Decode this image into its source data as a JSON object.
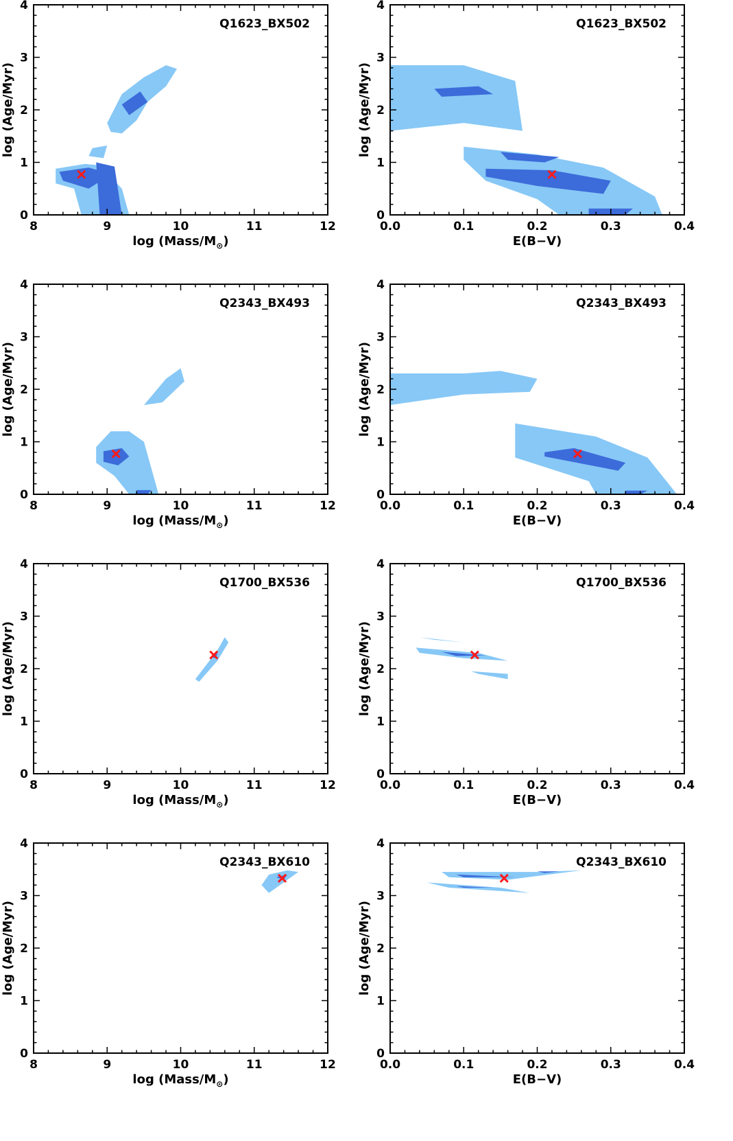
{
  "figure": {
    "colors": {
      "confidence_68": "#3c6bda",
      "confidence_95": "#87c8f6",
      "best_fit_marker": "#ff1a1a"
    }
  },
  "chart_data": [
    {
      "type": "contour",
      "object": "Q1623_BX502",
      "xlabel": "log (Mass/M",
      "xlabel_sub": "⊙",
      "xlabel_close": ")",
      "ylabel": "log (Age/Myr)",
      "xlim": [
        8,
        12
      ],
      "ylim": [
        0,
        4
      ],
      "xticks": [
        "8",
        "9",
        "10",
        "11",
        "12"
      ],
      "yticks": [
        "0",
        "1",
        "2",
        "3",
        "4"
      ],
      "best_fit": {
        "x": 8.65,
        "y": 0.77
      },
      "regions_95": [
        [
          [
            8.3,
            0.88
          ],
          [
            8.7,
            0.97
          ],
          [
            9.0,
            0.93
          ],
          [
            9.05,
            0.72
          ],
          [
            9.2,
            0.5
          ],
          [
            9.3,
            0.0
          ],
          [
            8.65,
            0.0
          ],
          [
            8.55,
            0.5
          ],
          [
            8.3,
            0.6
          ]
        ],
        [
          [
            9.0,
            1.75
          ],
          [
            9.2,
            2.3
          ],
          [
            9.5,
            2.62
          ],
          [
            9.8,
            2.85
          ],
          [
            9.95,
            2.78
          ],
          [
            9.8,
            2.45
          ],
          [
            9.55,
            2.15
          ],
          [
            9.4,
            1.8
          ],
          [
            9.2,
            1.55
          ],
          [
            9.05,
            1.58
          ]
        ],
        [
          [
            8.8,
            1.27
          ],
          [
            9.0,
            1.32
          ],
          [
            8.95,
            1.08
          ],
          [
            8.75,
            1.12
          ]
        ]
      ],
      "regions_68": [
        [
          [
            8.35,
            0.82
          ],
          [
            8.75,
            0.9
          ],
          [
            8.95,
            0.82
          ],
          [
            8.95,
            0.68
          ],
          [
            8.75,
            0.5
          ],
          [
            8.4,
            0.65
          ]
        ],
        [
          [
            9.2,
            2.1
          ],
          [
            9.45,
            2.35
          ],
          [
            9.55,
            2.15
          ],
          [
            9.3,
            1.9
          ]
        ],
        [
          [
            8.85,
            1.0
          ],
          [
            9.1,
            0.92
          ],
          [
            9.2,
            0.0
          ],
          [
            8.9,
            0.0
          ]
        ]
      ]
    },
    {
      "type": "contour",
      "object": "Q1623_BX502",
      "xlabel": "E(B−V)",
      "xlabel_sub": "",
      "xlabel_close": "",
      "ylabel": "log (Age/Myr)",
      "xlim": [
        0,
        0.4
      ],
      "ylim": [
        0,
        4
      ],
      "xticks": [
        "0.0",
        "0.1",
        "0.2",
        "0.3",
        "0.4"
      ],
      "yticks": [
        "0",
        "1",
        "2",
        "3",
        "4"
      ],
      "best_fit": {
        "x": 0.22,
        "y": 0.77
      },
      "regions_95": [
        [
          [
            0.0,
            2.85
          ],
          [
            0.1,
            2.85
          ],
          [
            0.17,
            2.55
          ],
          [
            0.18,
            1.6
          ],
          [
            0.1,
            1.75
          ],
          [
            0.0,
            1.6
          ]
        ],
        [
          [
            0.1,
            1.3
          ],
          [
            0.2,
            1.15
          ],
          [
            0.29,
            0.9
          ],
          [
            0.36,
            0.35
          ],
          [
            0.37,
            0.0
          ],
          [
            0.23,
            0.0
          ],
          [
            0.2,
            0.3
          ],
          [
            0.13,
            0.65
          ],
          [
            0.1,
            1.05
          ]
        ]
      ],
      "regions_68": [
        [
          [
            0.13,
            0.88
          ],
          [
            0.22,
            0.85
          ],
          [
            0.3,
            0.65
          ],
          [
            0.29,
            0.4
          ],
          [
            0.2,
            0.55
          ],
          [
            0.13,
            0.73
          ]
        ],
        [
          [
            0.15,
            1.2
          ],
          [
            0.23,
            1.1
          ],
          [
            0.21,
            1.0
          ],
          [
            0.16,
            1.05
          ]
        ],
        [
          [
            0.06,
            2.4
          ],
          [
            0.12,
            2.45
          ],
          [
            0.14,
            2.3
          ],
          [
            0.07,
            2.25
          ]
        ],
        [
          [
            0.27,
            0.12
          ],
          [
            0.33,
            0.12
          ],
          [
            0.32,
            0.0
          ],
          [
            0.27,
            0.0
          ]
        ]
      ]
    },
    {
      "type": "contour",
      "object": "Q2343_BX493",
      "xlabel": "log (Mass/M",
      "xlabel_sub": "⊙",
      "xlabel_close": ")",
      "ylabel": "log (Age/Myr)",
      "xlim": [
        8,
        12
      ],
      "ylim": [
        0,
        4
      ],
      "xticks": [
        "8",
        "9",
        "10",
        "11",
        "12"
      ],
      "yticks": [
        "0",
        "1",
        "2",
        "3",
        "4"
      ],
      "best_fit": {
        "x": 9.12,
        "y": 0.77
      },
      "regions_95": [
        [
          [
            8.85,
            0.9
          ],
          [
            9.05,
            1.2
          ],
          [
            9.3,
            1.2
          ],
          [
            9.5,
            1.0
          ],
          [
            9.6,
            0.5
          ],
          [
            9.7,
            0.0
          ],
          [
            9.3,
            0.0
          ],
          [
            9.1,
            0.35
          ],
          [
            8.85,
            0.6
          ]
        ],
        [
          [
            9.5,
            1.7
          ],
          [
            9.8,
            2.2
          ],
          [
            10.0,
            2.4
          ],
          [
            10.05,
            2.15
          ],
          [
            9.75,
            1.75
          ]
        ]
      ],
      "regions_68": [
        [
          [
            8.95,
            0.82
          ],
          [
            9.2,
            0.88
          ],
          [
            9.3,
            0.72
          ],
          [
            9.15,
            0.55
          ],
          [
            8.95,
            0.62
          ]
        ],
        [
          [
            9.4,
            0.08
          ],
          [
            9.6,
            0.08
          ],
          [
            9.55,
            0.0
          ],
          [
            9.4,
            0.0
          ]
        ]
      ]
    },
    {
      "type": "contour",
      "object": "Q2343_BX493",
      "xlabel": "E(B−V)",
      "xlabel_sub": "",
      "xlabel_close": "",
      "ylabel": "log (Age/Myr)",
      "xlim": [
        0,
        0.4
      ],
      "ylim": [
        0,
        4
      ],
      "xticks": [
        "0.0",
        "0.1",
        "0.2",
        "0.3",
        "0.4"
      ],
      "yticks": [
        "0",
        "1",
        "2",
        "3",
        "4"
      ],
      "best_fit": {
        "x": 0.255,
        "y": 0.77
      },
      "regions_95": [
        [
          [
            0.0,
            2.3
          ],
          [
            0.1,
            2.3
          ],
          [
            0.15,
            2.35
          ],
          [
            0.2,
            2.2
          ],
          [
            0.19,
            1.95
          ],
          [
            0.1,
            1.9
          ],
          [
            0.0,
            1.7
          ]
        ],
        [
          [
            0.17,
            1.35
          ],
          [
            0.28,
            1.1
          ],
          [
            0.35,
            0.7
          ],
          [
            0.39,
            0.0
          ],
          [
            0.28,
            0.0
          ],
          [
            0.27,
            0.25
          ],
          [
            0.17,
            0.7
          ]
        ]
      ],
      "regions_68": [
        [
          [
            0.21,
            0.8
          ],
          [
            0.25,
            0.88
          ],
          [
            0.32,
            0.6
          ],
          [
            0.31,
            0.45
          ],
          [
            0.21,
            0.72
          ]
        ],
        [
          [
            0.32,
            0.07
          ],
          [
            0.35,
            0.07
          ],
          [
            0.34,
            0.0
          ],
          [
            0.32,
            0.0
          ]
        ]
      ]
    },
    {
      "type": "contour",
      "object": "Q1700_BX536",
      "xlabel": "log (Mass/M",
      "xlabel_sub": "⊙",
      "xlabel_close": ")",
      "ylabel": "log (Age/Myr)",
      "xlim": [
        8,
        12
      ],
      "ylim": [
        0,
        4
      ],
      "xticks": [
        "8",
        "9",
        "10",
        "11",
        "12"
      ],
      "yticks": [
        "0",
        "1",
        "2",
        "3",
        "4"
      ],
      "best_fit": {
        "x": 10.45,
        "y": 2.26
      },
      "regions_95": [
        [
          [
            10.2,
            1.8
          ],
          [
            10.5,
            2.35
          ],
          [
            10.6,
            2.6
          ],
          [
            10.65,
            2.5
          ],
          [
            10.5,
            2.15
          ],
          [
            10.25,
            1.75
          ]
        ]
      ],
      "regions_68": [
        [
          [
            10.42,
            2.22
          ],
          [
            10.5,
            2.3
          ],
          [
            10.48,
            2.2
          ]
        ]
      ]
    },
    {
      "type": "contour",
      "object": "Q1700_BX536",
      "xlabel": "E(B−V)",
      "xlabel_sub": "",
      "xlabel_close": "",
      "ylabel": "log (Age/Myr)",
      "xlim": [
        0,
        0.4
      ],
      "ylim": [
        0,
        4
      ],
      "xticks": [
        "0.0",
        "0.1",
        "0.2",
        "0.3",
        "0.4"
      ],
      "yticks": [
        "0",
        "1",
        "2",
        "3",
        "4"
      ],
      "best_fit": {
        "x": 0.115,
        "y": 2.26
      },
      "regions_95": [
        [
          [
            0.035,
            2.4
          ],
          [
            0.12,
            2.3
          ],
          [
            0.16,
            2.15
          ],
          [
            0.1,
            2.2
          ],
          [
            0.04,
            2.3
          ]
        ],
        [
          [
            0.04,
            2.6
          ],
          [
            0.1,
            2.5
          ],
          [
            0.06,
            2.55
          ]
        ],
        [
          [
            0.11,
            1.95
          ],
          [
            0.16,
            1.9
          ],
          [
            0.16,
            1.8
          ],
          [
            0.12,
            1.9
          ]
        ]
      ],
      "regions_68": [
        [
          [
            0.07,
            2.32
          ],
          [
            0.13,
            2.25
          ],
          [
            0.09,
            2.24
          ]
        ]
      ]
    },
    {
      "type": "contour",
      "object": "Q2343_BX610",
      "xlabel": "log (Mass/M",
      "xlabel_sub": "⊙",
      "xlabel_close": ")",
      "ylabel": "log (Age/Myr)",
      "xlim": [
        8,
        12
      ],
      "ylim": [
        0,
        4
      ],
      "xticks": [
        "8",
        "9",
        "10",
        "11",
        "12"
      ],
      "yticks": [
        "0",
        "1",
        "2",
        "3",
        "4"
      ],
      "best_fit": {
        "x": 11.38,
        "y": 3.33
      },
      "regions_95": [
        [
          [
            11.1,
            3.2
          ],
          [
            11.2,
            3.4
          ],
          [
            11.45,
            3.48
          ],
          [
            11.6,
            3.45
          ],
          [
            11.4,
            3.25
          ],
          [
            11.2,
            3.05
          ]
        ]
      ],
      "regions_68": [
        [
          [
            11.3,
            3.35
          ],
          [
            11.45,
            3.4
          ],
          [
            11.4,
            3.3
          ]
        ]
      ]
    },
    {
      "type": "contour",
      "object": "Q2343_BX610",
      "xlabel": "E(B−V)",
      "xlabel_sub": "",
      "xlabel_close": "",
      "ylabel": "log (Age/Myr)",
      "xlim": [
        0,
        0.4
      ],
      "ylim": [
        0,
        4
      ],
      "xticks": [
        "0.0",
        "0.1",
        "0.2",
        "0.3",
        "0.4"
      ],
      "yticks": [
        "0",
        "1",
        "2",
        "3",
        "4"
      ],
      "best_fit": {
        "x": 0.155,
        "y": 3.33
      },
      "regions_95": [
        [
          [
            0.07,
            3.45
          ],
          [
            0.2,
            3.45
          ],
          [
            0.26,
            3.48
          ],
          [
            0.16,
            3.3
          ],
          [
            0.08,
            3.35
          ]
        ],
        [
          [
            0.05,
            3.25
          ],
          [
            0.15,
            3.15
          ],
          [
            0.19,
            3.05
          ],
          [
            0.08,
            3.15
          ]
        ]
      ],
      "regions_68": [
        [
          [
            0.09,
            3.4
          ],
          [
            0.17,
            3.35
          ],
          [
            0.1,
            3.35
          ]
        ],
        [
          [
            0.2,
            3.46
          ],
          [
            0.23,
            3.46
          ],
          [
            0.21,
            3.43
          ]
        ],
        [
          [
            0.09,
            3.18
          ],
          [
            0.14,
            3.15
          ],
          [
            0.1,
            3.15
          ]
        ]
      ]
    }
  ]
}
